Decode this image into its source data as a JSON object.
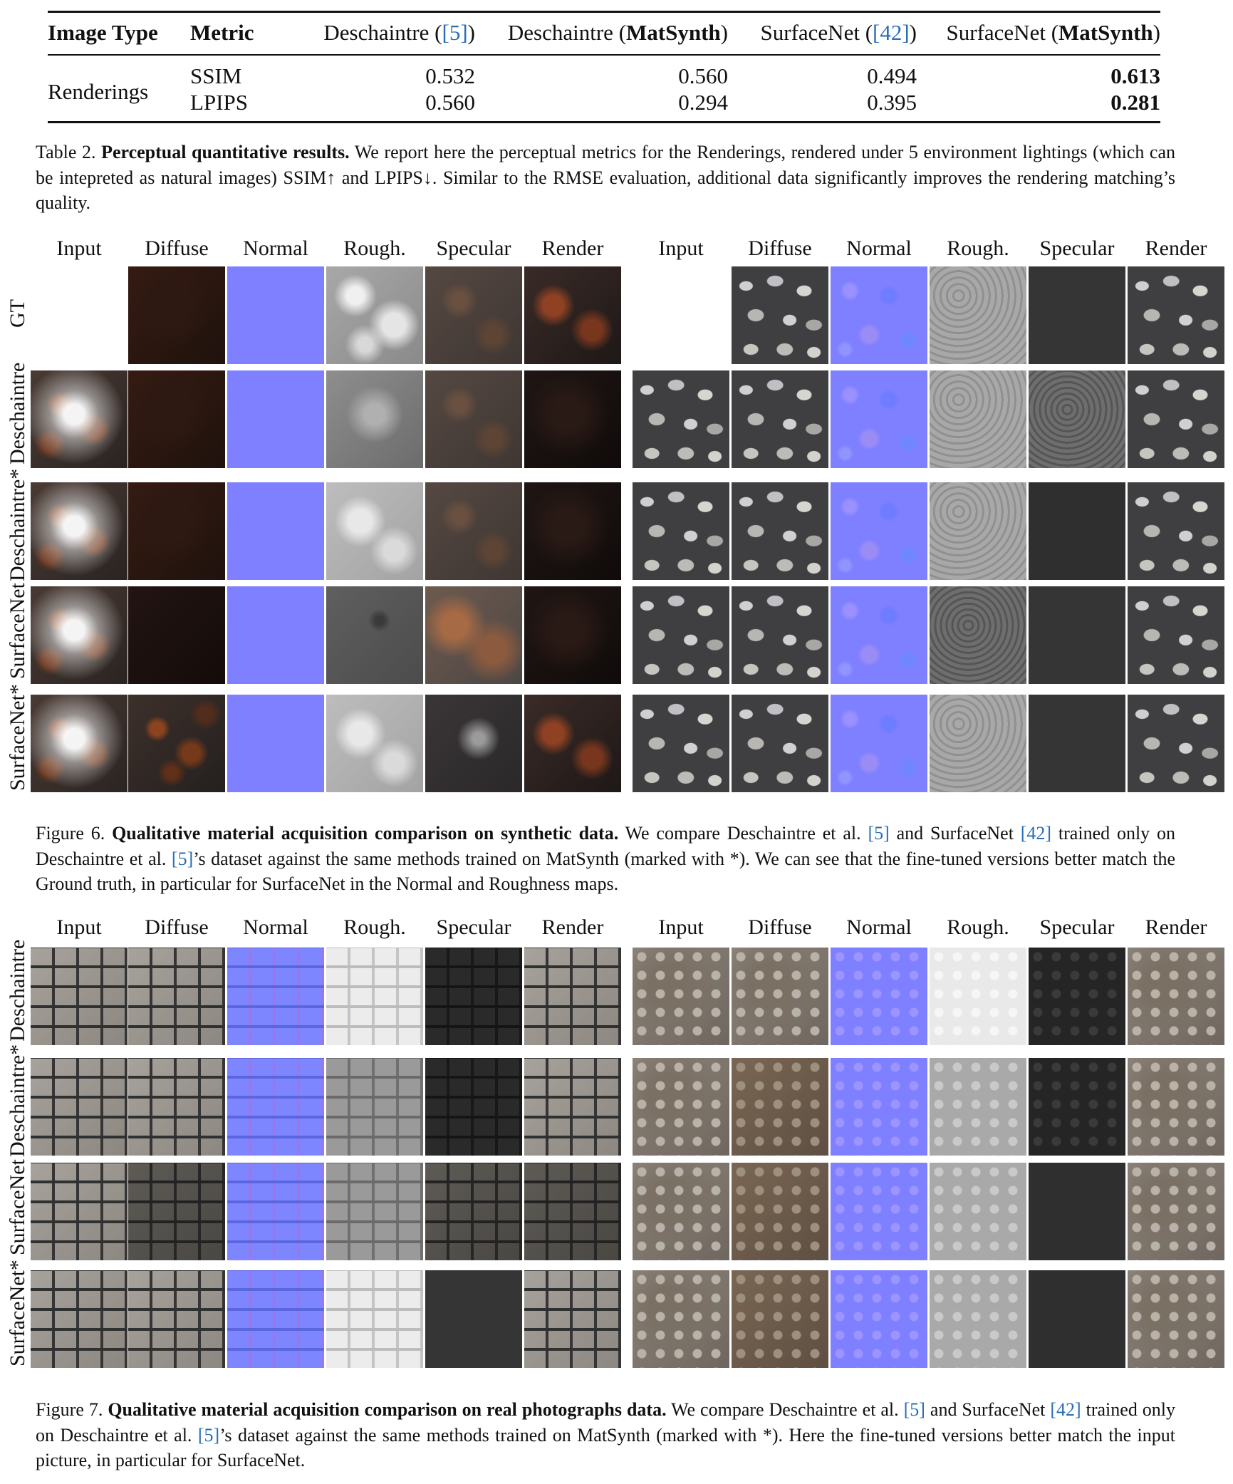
{
  "table": {
    "headers": [
      {
        "text": "Image Type",
        "bold": true
      },
      {
        "text": "Metric",
        "bold": true
      },
      {
        "text_parts": [
          "Deschaintre (",
          "[5]",
          ")"
        ]
      },
      {
        "text_parts": [
          "Deschaintre (",
          "MatSynth",
          ")"
        ]
      },
      {
        "text_parts": [
          "SurfaceNet (",
          "[42]",
          ")"
        ]
      },
      {
        "text_parts": [
          "SurfaceNet (",
          "MatSynth",
          ")"
        ]
      }
    ],
    "image_type": "Renderings",
    "rows": [
      {
        "metric": "SSIM",
        "values": [
          "0.532",
          "0.560",
          "0.494",
          "0.613"
        ]
      },
      {
        "metric": "LPIPS",
        "values": [
          "0.560",
          "0.294",
          "0.395",
          "0.281"
        ]
      }
    ]
  },
  "table_caption": {
    "label": "Table 2.",
    "lead": "Perceptual quantitative results.",
    "text": "We report here the perceptual metrics for the Renderings, rendered under 5 environment lightings (which can be intepreted as natural images) SSIM↑ and LPIPS↓. Similar to the RMSE evaluation, additional data significantly improves the rendering matching’s quality."
  },
  "column_headers": [
    "Input",
    "Diffuse",
    "Normal",
    "Rough.",
    "Specular",
    "Render"
  ],
  "figure6": {
    "row_labels": [
      "GT",
      "Deschaintre",
      "Deschaintre*",
      "SurfaceNet",
      "SurfaceNet*"
    ],
    "caption": {
      "label": "Figure 6.",
      "lead": "Qualitative material acquisition comparison on synthetic data.",
      "text_1": "We compare Deschaintre et al. ",
      "ref_1": "[5]",
      "text_2": " and SurfaceNet ",
      "ref_2": "[42]",
      "text_3": " trained only on Deschaintre et al. ",
      "ref_3": "[5]",
      "text_4": "’s dataset against the same methods trained on MatSynth (marked with *). We can see that the fine-tuned versions better match the Ground truth, in particular for SurfaceNet in the Normal and Roughness maps."
    }
  },
  "figure7": {
    "row_labels": [
      "Deschaintre",
      "Deschaintre*",
      "SurfaceNet",
      "SurfaceNet*"
    ],
    "caption": {
      "label": "Figure 7.",
      "lead": "Qualitative material acquisition comparison on real photographs data.",
      "text_1": "We compare Deschaintre et al. ",
      "ref_1": "[5]",
      "text_2": " and SurfaceNet ",
      "ref_2": "[42]",
      "text_3": " trained only on Deschaintre et al. ",
      "ref_3": "[5]",
      "text_4": "’s dataset against the same methods trained on MatSynth (marked with *). Here the fine-tuned versions better match the input picture, in particular for SurfaceNet."
    }
  }
}
